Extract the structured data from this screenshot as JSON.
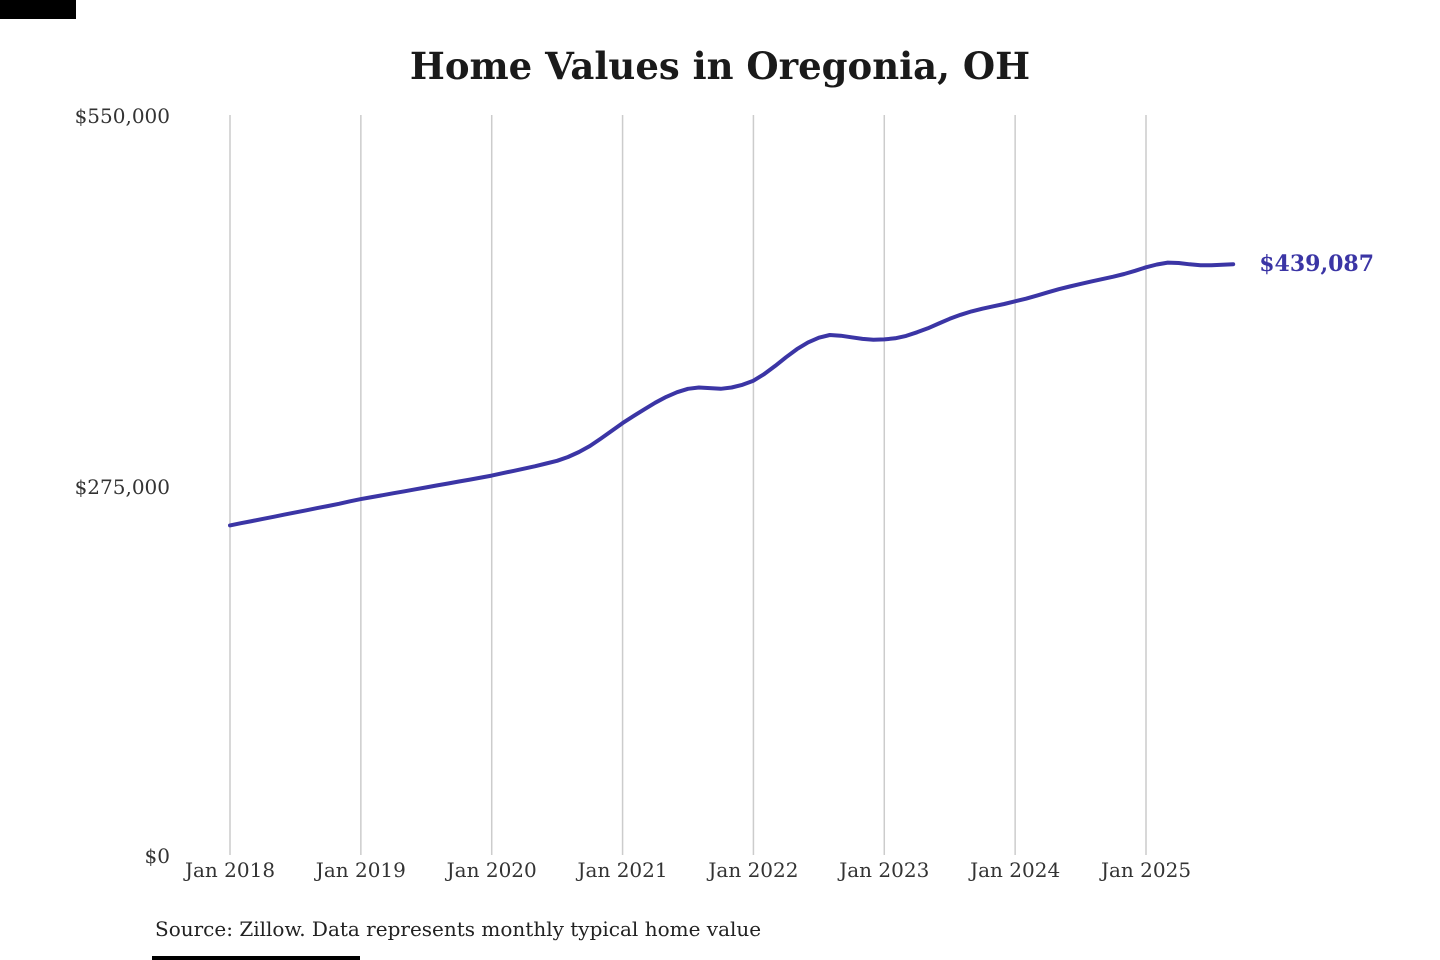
{
  "colors": {
    "line": "#3b35a5",
    "grid": "#cccccc",
    "text": "#333333",
    "title": "#1a1a1a",
    "end_label": "#3b35a5"
  },
  "chart_data": {
    "type": "line",
    "title": "Home Values in Oregonia, OH",
    "source": "Source: Zillow. Data represents monthly typical home value",
    "final_value": 439087,
    "final_value_label": "$439,087",
    "ylim": [
      0,
      550000
    ],
    "y_ticks": [
      0,
      275000,
      550000
    ],
    "y_tick_labels": [
      "$0",
      "$275,000",
      "$550,000"
    ],
    "x_tick_labels": [
      "Jan 2018",
      "Jan 2019",
      "Jan 2020",
      "Jan 2021",
      "Jan 2022",
      "Jan 2023",
      "Jan 2024",
      "Jan 2025"
    ],
    "grid": "vertical-only",
    "x": [
      "2018-01",
      "2018-02",
      "2018-03",
      "2018-04",
      "2018-05",
      "2018-06",
      "2018-07",
      "2018-08",
      "2018-09",
      "2018-10",
      "2018-11",
      "2018-12",
      "2019-01",
      "2019-02",
      "2019-03",
      "2019-04",
      "2019-05",
      "2019-06",
      "2019-07",
      "2019-08",
      "2019-09",
      "2019-10",
      "2019-11",
      "2019-12",
      "2020-01",
      "2020-02",
      "2020-03",
      "2020-04",
      "2020-05",
      "2020-06",
      "2020-07",
      "2020-08",
      "2020-09",
      "2020-10",
      "2020-11",
      "2020-12",
      "2021-01",
      "2021-02",
      "2021-03",
      "2021-04",
      "2021-05",
      "2021-06",
      "2021-07",
      "2021-08",
      "2021-09",
      "2021-10",
      "2021-11",
      "2021-12",
      "2022-01",
      "2022-02",
      "2022-03",
      "2022-04",
      "2022-05",
      "2022-06",
      "2022-07",
      "2022-08",
      "2022-09",
      "2022-10",
      "2022-11",
      "2022-12",
      "2023-01",
      "2023-02",
      "2023-03",
      "2023-04",
      "2023-05",
      "2023-06",
      "2023-07",
      "2023-08",
      "2023-09",
      "2023-10",
      "2023-11",
      "2023-12",
      "2024-01",
      "2024-02",
      "2024-03",
      "2024-04",
      "2024-05",
      "2024-06",
      "2024-07",
      "2024-08",
      "2024-09",
      "2024-10",
      "2024-11",
      "2024-12",
      "2025-01",
      "2025-02",
      "2025-03",
      "2025-04",
      "2025-05",
      "2025-06",
      "2025-07",
      "2025-08",
      "2025-09"
    ],
    "values": [
      245000,
      246600,
      248200,
      249800,
      251400,
      253000,
      254600,
      256200,
      257800,
      259400,
      261000,
      262900,
      264500,
      266000,
      267400,
      268900,
      270300,
      271800,
      273200,
      274700,
      276100,
      277600,
      279000,
      280500,
      282000,
      283800,
      285500,
      287200,
      289000,
      291000,
      293000,
      295800,
      299500,
      304000,
      309500,
      315200,
      321000,
      326200,
      331300,
      336200,
      340500,
      344000,
      346500,
      347500,
      347000,
      346500,
      347500,
      349500,
      352500,
      357500,
      363500,
      370000,
      376000,
      381000,
      384500,
      386500,
      386000,
      384800,
      383600,
      383000,
      383200,
      384000,
      385800,
      388500,
      391500,
      395000,
      398500,
      401500,
      404000,
      406000,
      407800,
      409500,
      411500,
      413500,
      415800,
      418200,
      420500,
      422500,
      424500,
      426300,
      428000,
      429800,
      431800,
      434200,
      436800,
      438900,
      440300,
      440000,
      439000,
      438400,
      438300,
      438700,
      439087
    ]
  }
}
